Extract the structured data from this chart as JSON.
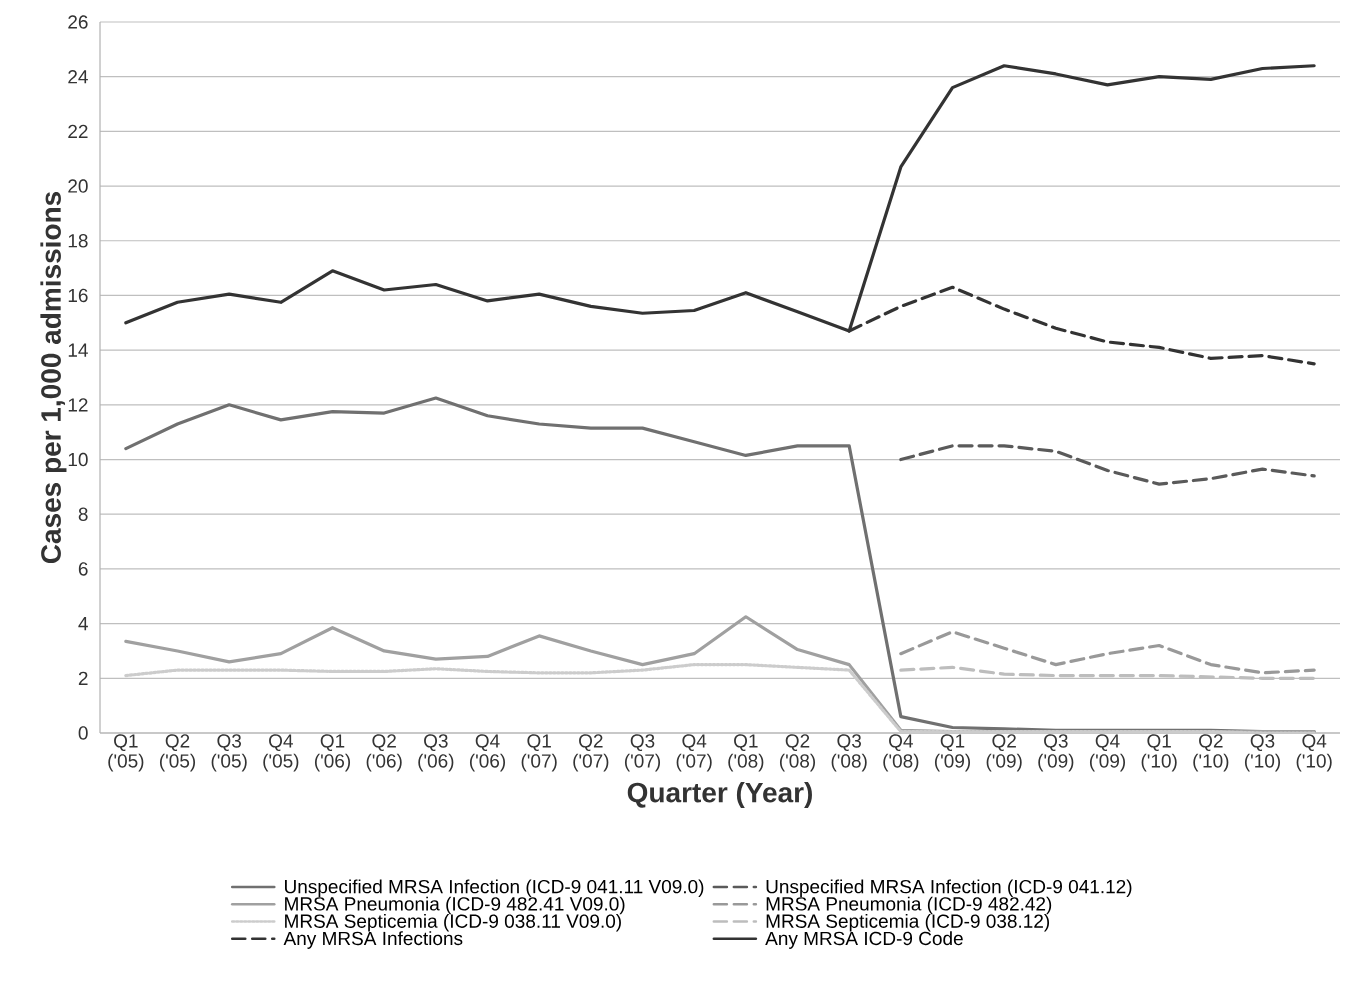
{
  "chart_data": {
    "type": "line",
    "xlabel": "Quarter (Year)",
    "ylabel": "Cases per 1,000 admissions",
    "categories": [
      "Q1 ('05)",
      "Q2 ('05)",
      "Q3 ('05)",
      "Q4 ('05)",
      "Q1 ('06)",
      "Q2 ('06)",
      "Q3 ('06)",
      "Q4 ('06)",
      "Q1 ('07)",
      "Q2 ('07)",
      "Q3 ('07)",
      "Q4 ('07)",
      "Q1 ('08)",
      "Q2 ('08)",
      "Q3 ('08)",
      "Q4 ('08)",
      "Q1 ('09)",
      "Q2 ('09)",
      "Q3 ('09)",
      "Q4 ('09)",
      "Q1 ('10)",
      "Q2 ('10)",
      "Q3 ('10)",
      "Q4 ('10)"
    ],
    "series": [
      {
        "name": "Unspecified MRSA Infection (ICD-9 041.11 V09.0)",
        "color": "#707070",
        "line_style": "solid",
        "values": [
          10.4,
          11.3,
          12.0,
          11.45,
          11.75,
          11.7,
          12.25,
          11.6,
          11.3,
          11.15,
          11.15,
          10.65,
          10.15,
          10.5,
          10.5,
          0.6,
          0.2,
          0.15,
          0.1,
          0.1,
          0.1,
          0.1,
          0.05,
          0.05
        ]
      },
      {
        "name": "Unspecified MRSA Infection (ICD-9 041.12)",
        "color": "#5a5a5a",
        "line_style": "dashed",
        "values": [
          null,
          null,
          null,
          null,
          null,
          null,
          null,
          null,
          null,
          null,
          null,
          null,
          null,
          null,
          null,
          10.0,
          10.5,
          10.5,
          10.3,
          9.6,
          9.1,
          9.3,
          9.65,
          9.4
        ]
      },
      {
        "name": "MRSA Pneumonia (ICD-9 482.41 V09.0)",
        "color": "#a0a0a0",
        "line_style": "solid",
        "values": [
          3.35,
          3.0,
          2.6,
          2.9,
          3.85,
          3.0,
          2.7,
          2.8,
          3.55,
          3.0,
          2.5,
          2.9,
          4.25,
          3.05,
          2.5,
          0.1,
          0.05,
          0.05,
          0.05,
          0.05,
          0.05,
          0.05,
          0.05,
          0.05
        ]
      },
      {
        "name": "MRSA Pneumonia (ICD-9 482.42)",
        "color": "#999999",
        "line_style": "dashed",
        "values": [
          null,
          null,
          null,
          null,
          null,
          null,
          null,
          null,
          null,
          null,
          null,
          null,
          null,
          null,
          null,
          2.9,
          3.7,
          3.1,
          2.5,
          2.9,
          3.2,
          2.5,
          2.2,
          2.3
        ]
      },
      {
        "name": "MRSA Septicemia (ICD-9 038.11  V09.0)",
        "color": "#cccccc",
        "line_style": "dotted",
        "values": [
          2.1,
          2.3,
          2.3,
          2.3,
          2.25,
          2.25,
          2.35,
          2.25,
          2.2,
          2.2,
          2.3,
          2.5,
          2.5,
          2.4,
          2.3,
          0.05,
          0.05,
          0.05,
          0.05,
          0.05,
          0.05,
          0.05,
          0.0,
          0.0
        ]
      },
      {
        "name": "MRSA Septicemia (ICD-9 038.12)",
        "color": "#bdbdbd",
        "line_style": "dashed",
        "values": [
          null,
          null,
          null,
          null,
          null,
          null,
          null,
          null,
          null,
          null,
          null,
          null,
          null,
          null,
          null,
          2.3,
          2.4,
          2.15,
          2.1,
          2.1,
          2.1,
          2.05,
          2.0,
          2.0
        ]
      },
      {
        "name": "Any MRSA Infections",
        "color": "#333333",
        "line_style": "dashed",
        "values": [
          null,
          null,
          null,
          null,
          null,
          null,
          null,
          null,
          null,
          null,
          null,
          null,
          null,
          null,
          14.7,
          15.6,
          16.3,
          15.5,
          14.8,
          14.3,
          14.1,
          13.7,
          13.8,
          13.5
        ]
      },
      {
        "name": "Any MRSA ICD-9 Code",
        "color": "#333333",
        "line_style": "solid",
        "values": [
          15.0,
          15.75,
          16.05,
          15.75,
          16.9,
          16.2,
          16.4,
          15.8,
          16.05,
          15.6,
          15.35,
          15.45,
          16.1,
          15.4,
          14.7,
          20.7,
          23.6,
          24.4,
          24.1,
          23.7,
          24.0,
          23.9,
          24.3,
          24.4
        ]
      }
    ],
    "ylim": [
      0,
      26
    ],
    "yticks": [
      0,
      2,
      4,
      6,
      8,
      10,
      12,
      14,
      16,
      18,
      20,
      22,
      24,
      26
    ],
    "grid": "y",
    "legend": "bottom",
    "marker": "none"
  }
}
